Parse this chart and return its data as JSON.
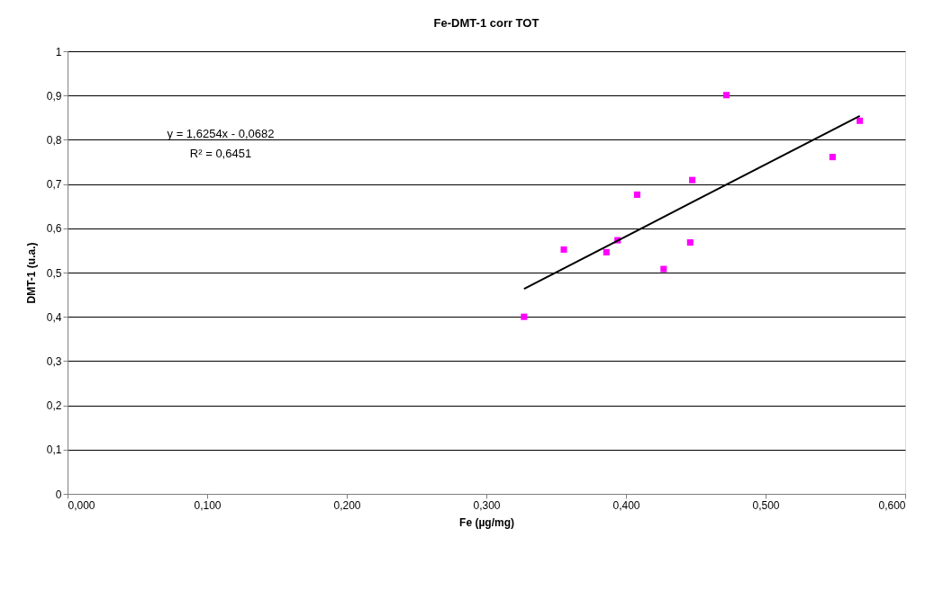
{
  "chart_data": {
    "type": "scatter",
    "title": "Fe-DMT-1 corr TOT",
    "xlabel": "Fe (µg/mg)",
    "ylabel": "DMT-1 (u.a.)",
    "annotations": [
      "y = 1,6254x - 0,0682",
      "R² = 0,6451"
    ],
    "series": [
      {
        "type": "scatter",
        "color": "#ff00ff",
        "marker": "square",
        "x": [
          0.327,
          0.3555,
          0.386,
          0.394,
          0.408,
          0.427,
          0.446,
          0.4475,
          0.472,
          0.548,
          0.5675
        ],
        "values": [
          0.4,
          0.552,
          0.546,
          0.573,
          0.676,
          0.508,
          0.568,
          0.709,
          0.901,
          0.761,
          0.843
        ]
      },
      {
        "type": "line",
        "color": "#000000",
        "marker": "none",
        "x": [
          0.327,
          0.5675
        ],
        "values": [
          0.463,
          0.854
        ]
      }
    ],
    "xlim": [
      0,
      0.6
    ],
    "xticks": [
      {
        "value": 0,
        "label": "0,000"
      },
      {
        "value": 0.1,
        "label": "0,100"
      },
      {
        "value": 0.2,
        "label": "0,200"
      },
      {
        "value": 0.3,
        "label": "0,300"
      },
      {
        "value": 0.4,
        "label": "0,400"
      },
      {
        "value": 0.5,
        "label": "0,500"
      },
      {
        "value": 0.6,
        "label": "0,600"
      }
    ],
    "ylim": [
      0,
      1
    ],
    "yticks": [
      0,
      {
        "value": 0.1,
        "label": "0,1"
      },
      {
        "value": 0.2,
        "label": "0,2"
      },
      {
        "value": 0.3,
        "label": "0,3"
      },
      {
        "value": 0.4,
        "label": "0,4"
      },
      {
        "value": 0.5,
        "label": "0,5"
      },
      {
        "value": 0.6,
        "label": "0,6"
      },
      {
        "value": 0.7,
        "label": "0,7"
      },
      {
        "value": 0.8,
        "label": "0,8"
      },
      {
        "value": 0.9,
        "label": "0,9"
      },
      1
    ],
    "grid": "y"
  }
}
